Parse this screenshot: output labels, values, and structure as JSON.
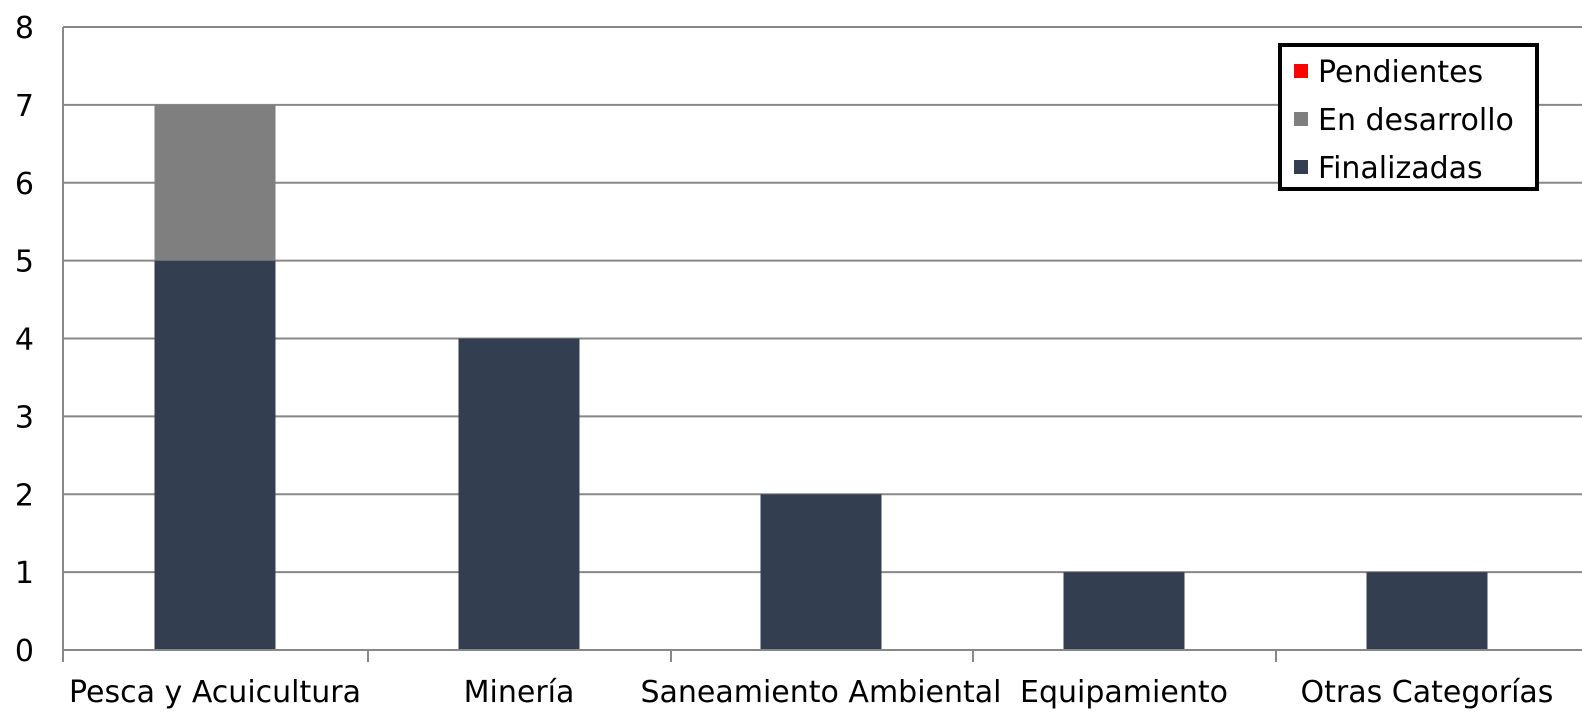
{
  "chart_data": {
    "type": "bar",
    "stacked": true,
    "categories": [
      "Pesca y Acuicultura",
      "Minería",
      "Saneamiento Ambiental",
      "Equipamiento",
      "Otras Categorías"
    ],
    "series": [
      {
        "name": "Finalizadas",
        "values": [
          5,
          4,
          2,
          1,
          1
        ],
        "color": "#333F50"
      },
      {
        "name": "En desarrollo",
        "values": [
          2,
          0,
          0,
          0,
          0
        ],
        "color": "#7F7F7F"
      },
      {
        "name": "Pendientes",
        "values": [
          0,
          0,
          0,
          0,
          0
        ],
        "color": "#FF0000"
      }
    ],
    "y_ticks": [
      "0",
      "1",
      "2",
      "3",
      "4",
      "5",
      "6",
      "7",
      "8"
    ],
    "ylim": [
      0,
      8
    ],
    "grid": true,
    "legend_position": "top-right",
    "legend_order": [
      "Pendientes",
      "En desarrollo",
      "Finalizadas"
    ]
  }
}
